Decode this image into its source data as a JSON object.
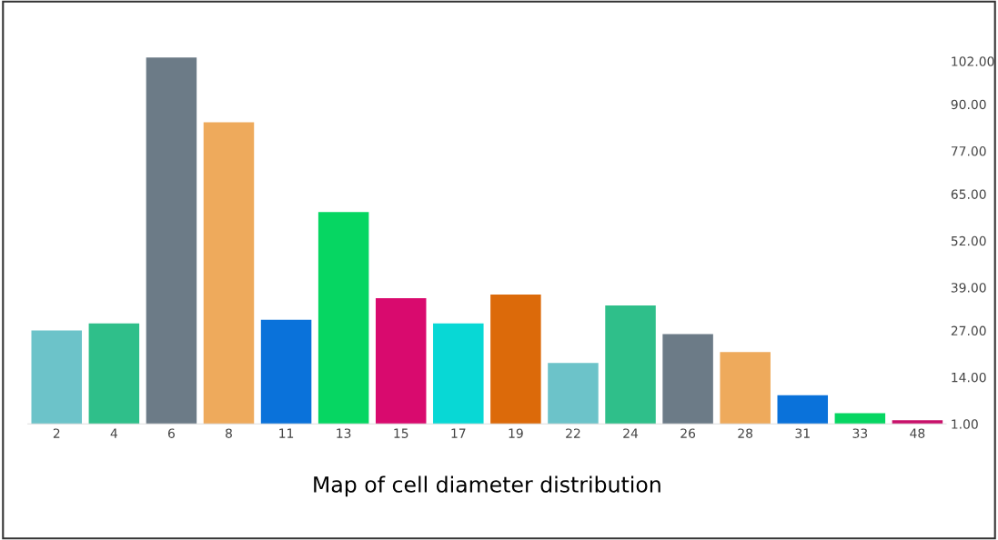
{
  "chart_data": {
    "type": "bar",
    "xlabel": "Map of cell diameter distribution",
    "categories": [
      "2",
      "4",
      "6",
      "8",
      "11",
      "13",
      "15",
      "17",
      "19",
      "22",
      "24",
      "26",
      "28",
      "31",
      "33",
      "48"
    ],
    "values": [
      27,
      29,
      103,
      85,
      30,
      60,
      36,
      29,
      37,
      18,
      34,
      26,
      21,
      9,
      4,
      2
    ],
    "colors": [
      "#6cc3c9",
      "#2fbf8a",
      "#6c7b87",
      "#eeaa5c",
      "#0a72da",
      "#06d662",
      "#d90a6e",
      "#08d8d5",
      "#dc6a0a",
      "#6cc3c9",
      "#2fbf8a",
      "#6c7b87",
      "#eeaa5c",
      "#0a72da",
      "#06d662",
      "#c8106a"
    ],
    "ylim": [
      1,
      104
    ],
    "yticks": [
      {
        "value": 1,
        "label": "1.00"
      },
      {
        "value": 14,
        "label": "14.00"
      },
      {
        "value": 27,
        "label": "27.00"
      },
      {
        "value": 39,
        "label": "39.00"
      },
      {
        "value": 52,
        "label": "52.00"
      },
      {
        "value": 65,
        "label": "65.00"
      },
      {
        "value": 77,
        "label": "77.00"
      },
      {
        "value": 90,
        "label": "90.00"
      },
      {
        "value": 102,
        "label": "102.00"
      }
    ],
    "grid": false
  }
}
